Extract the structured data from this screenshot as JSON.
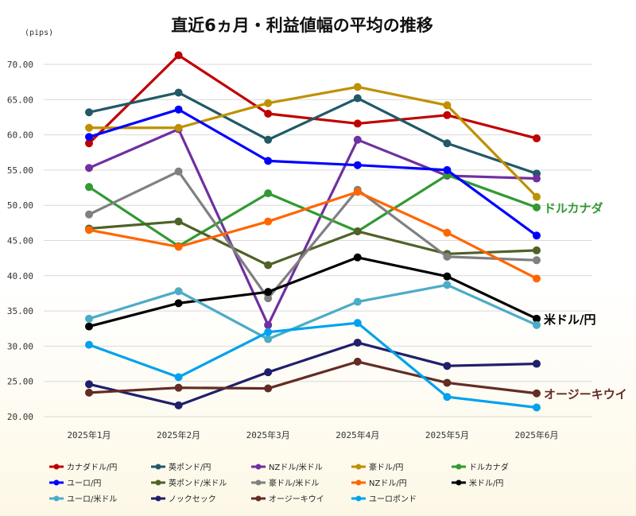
{
  "chart_data": {
    "type": "line",
    "title": "直近6ヵ月・利益値幅の平均の推移",
    "ylabel": "(pips)",
    "xlabel": "",
    "categories": [
      "2025年1月",
      "2025年2月",
      "2025年3月",
      "2025年4月",
      "2025年5月",
      "2025年6月"
    ],
    "ylim": [
      20,
      70
    ],
    "yticks": [
      "20.00",
      "25.00",
      "30.00",
      "35.00",
      "40.00",
      "45.00",
      "50.00",
      "55.00",
      "60.00",
      "65.00",
      "70.00"
    ],
    "grid": true,
    "legend_position": "bottom",
    "series": [
      {
        "name": "カナダドル/円",
        "color": "#c00000",
        "values": [
          58.8,
          71.3,
          63.0,
          61.6,
          62.8,
          59.5
        ]
      },
      {
        "name": "英ポンド/円",
        "color": "#215968",
        "values": [
          63.2,
          66.0,
          59.3,
          65.2,
          58.8,
          54.5
        ]
      },
      {
        "name": "NZドル/米ドル",
        "color": "#7030a0",
        "values": [
          55.3,
          60.8,
          33.0,
          59.3,
          54.2,
          53.8
        ]
      },
      {
        "name": "豪ドル/円",
        "color": "#bf9000",
        "values": [
          61.0,
          61.0,
          64.5,
          66.8,
          64.2,
          51.2
        ]
      },
      {
        "name": "ドルカナダ",
        "color": "#339933",
        "values": [
          52.6,
          44.2,
          51.7,
          46.3,
          54.3,
          49.7
        ]
      },
      {
        "name": "ユーロ/円",
        "color": "#0000ff",
        "values": [
          59.7,
          63.6,
          56.3,
          55.7,
          55.0,
          45.7
        ]
      },
      {
        "name": "英ポンド/米ドル",
        "color": "#4f6228",
        "values": [
          46.7,
          47.7,
          41.5,
          46.3,
          43.1,
          43.6
        ]
      },
      {
        "name": "豪ドル/米ドル",
        "color": "#808080",
        "values": [
          48.7,
          54.8,
          36.8,
          52.2,
          42.7,
          42.2
        ]
      },
      {
        "name": "NZドル/円",
        "color": "#ff6600",
        "values": [
          46.5,
          44.1,
          47.7,
          51.9,
          46.1,
          39.6
        ]
      },
      {
        "name": "米ドル/円",
        "color": "#000000",
        "values": [
          32.8,
          36.1,
          37.7,
          42.6,
          39.9,
          33.9
        ]
      },
      {
        "name": "ユーロ/米ドル",
        "color": "#4bacc6",
        "values": [
          33.9,
          37.8,
          31.0,
          36.3,
          38.7,
          33.0
        ]
      },
      {
        "name": "ノックセック",
        "color": "#1f1f6b",
        "values": [
          24.6,
          21.6,
          26.3,
          30.5,
          27.2,
          27.5
        ]
      },
      {
        "name": "オージーキウイ",
        "color": "#632c24",
        "values": [
          23.4,
          24.1,
          24.0,
          27.8,
          24.8,
          23.3
        ]
      },
      {
        "name": "ユーロポンド",
        "color": "#00a2ed",
        "values": [
          30.2,
          25.6,
          32.0,
          33.3,
          22.8,
          21.3
        ]
      }
    ],
    "annotations": [
      {
        "text": "ドルカナダ",
        "series": "ドルカナダ",
        "color": "#339933"
      },
      {
        "text": "米ドル/円",
        "series": "米ドル/円",
        "color": "#000000"
      },
      {
        "text": "オージーキウイ",
        "series": "オージーキウイ",
        "color": "#632c24"
      }
    ]
  }
}
